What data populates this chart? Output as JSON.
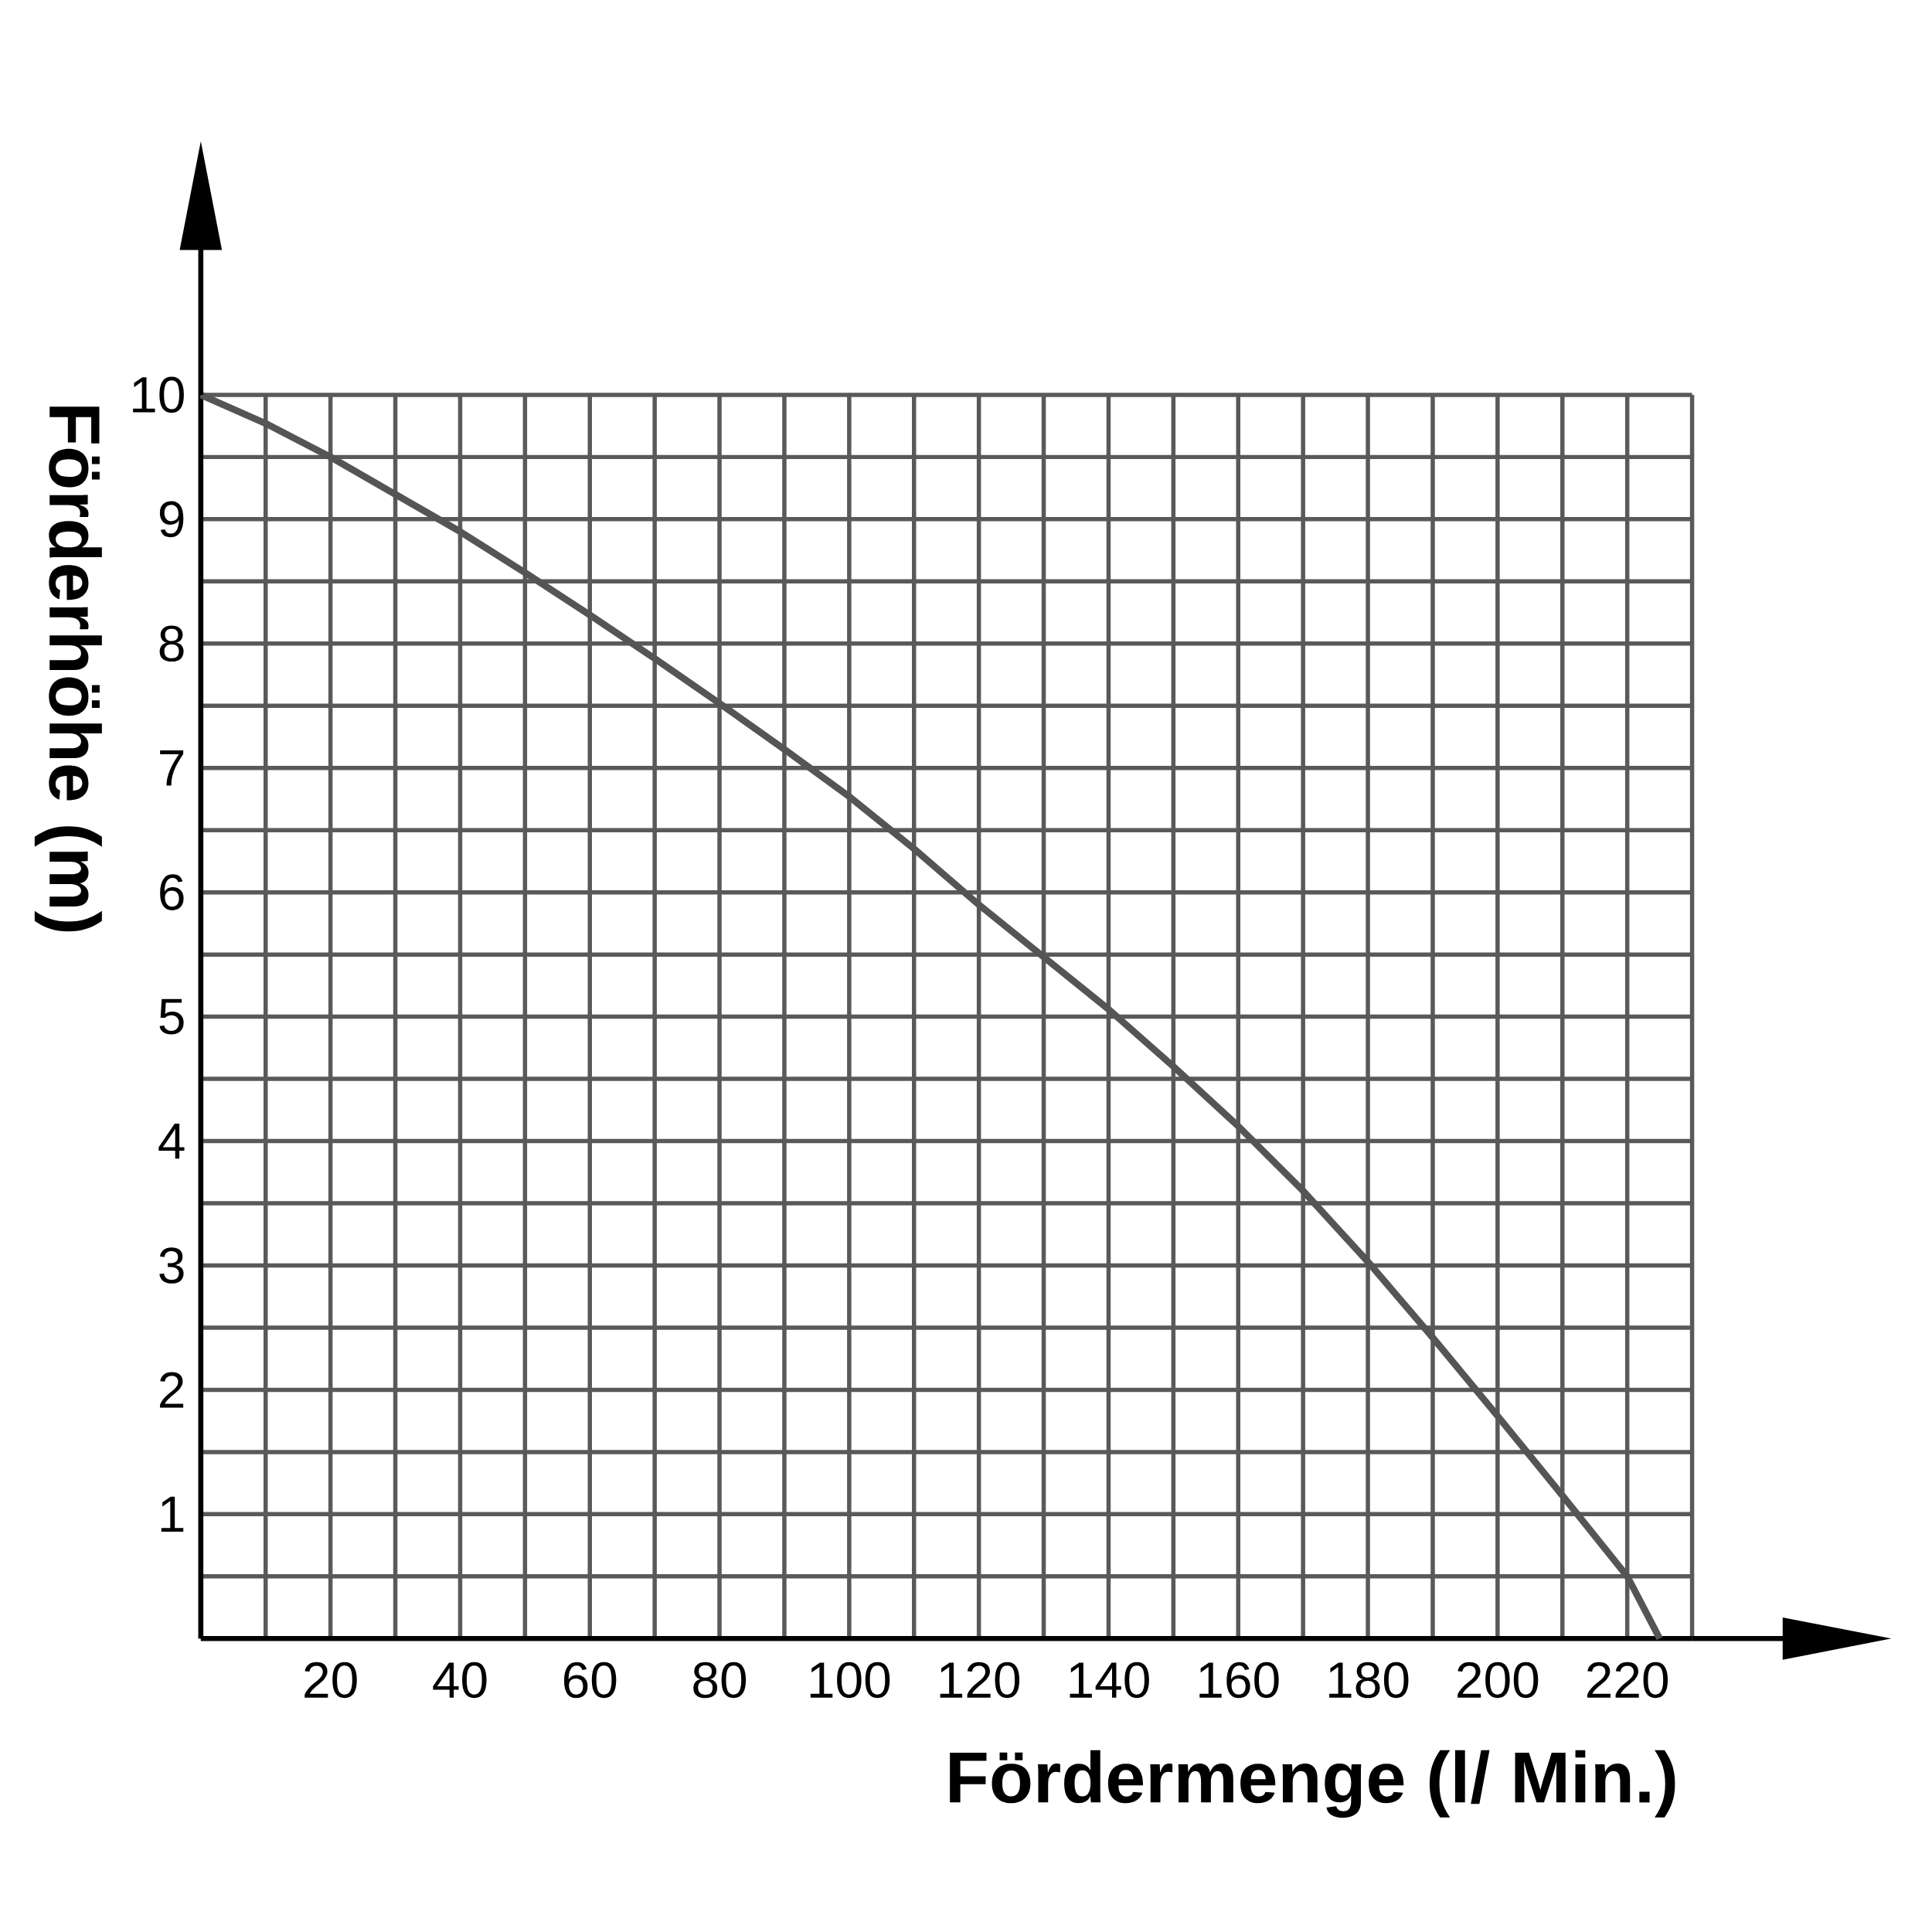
{
  "chart_data": {
    "type": "line",
    "xlabel": "Fördermenge (l/ Min.)",
    "ylabel": "Förderhöhe (m)",
    "x": [
      0,
      10,
      20,
      30,
      40,
      50,
      60,
      70,
      80,
      90,
      100,
      110,
      120,
      130,
      140,
      150,
      160,
      170,
      180,
      190,
      200,
      210,
      220,
      225
    ],
    "series": [
      {
        "color": "#555555",
        "values": [
          10,
          9.77,
          9.5,
          9.2,
          8.9,
          8.57,
          8.23,
          7.88,
          7.52,
          7.15,
          6.77,
          6.35,
          5.9,
          5.48,
          5.06,
          4.6,
          4.12,
          3.6,
          3.03,
          2.42,
          1.79,
          1.15,
          0.5,
          0
        ]
      }
    ],
    "xlim": [
      0,
      230
    ],
    "ylim": [
      0,
      10
    ],
    "xticks": [
      {
        "value": 0,
        "label": null
      },
      {
        "value": 10,
        "label": null
      },
      20,
      {
        "value": 30,
        "label": null
      },
      40,
      {
        "value": 50,
        "label": null
      },
      60,
      {
        "value": 70,
        "label": null
      },
      80,
      {
        "value": 90,
        "label": null
      },
      100,
      {
        "value": 110,
        "label": null
      },
      120,
      {
        "value": 130,
        "label": null
      },
      140,
      {
        "value": 150,
        "label": null
      },
      160,
      {
        "value": 170,
        "label": null
      },
      180,
      {
        "value": 190,
        "label": null
      },
      200,
      {
        "value": 210,
        "label": null
      },
      220,
      {
        "value": 230,
        "label": null
      }
    ],
    "yticks": [
      {
        "value": 0,
        "label": null
      },
      {
        "value": 0.5,
        "label": null
      },
      1,
      {
        "value": 1.5,
        "label": null
      },
      2,
      {
        "value": 2.5,
        "label": null
      },
      3,
      {
        "value": 3.5,
        "label": null
      },
      4,
      {
        "value": 4.5,
        "label": null
      },
      5,
      {
        "value": 5.5,
        "label": null
      },
      6,
      {
        "value": 6.5,
        "label": null
      },
      7,
      {
        "value": 7.5,
        "label": null
      },
      8,
      {
        "value": 8.5,
        "label": null
      },
      9,
      {
        "value": 9.5,
        "label": null
      },
      10
    ],
    "grid": true,
    "marker": "none",
    "line_style": "solid"
  }
}
